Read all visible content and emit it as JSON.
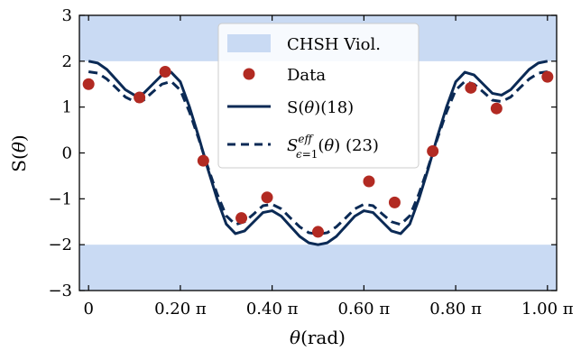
{
  "chart_data": {
    "type": "line",
    "xlabel": "θ(rad)",
    "ylabel": "S(θ)",
    "xlim": [
      -0.02,
      1.02
    ],
    "ylim": [
      -3,
      3
    ],
    "x_unit": "π",
    "x_ticks": [
      {
        "value": 0,
        "label": "0"
      },
      {
        "value": 0.2,
        "label": "0.20 π"
      },
      {
        "value": 0.4,
        "label": "0.40 π"
      },
      {
        "value": 0.6,
        "label": "0.60 π"
      },
      {
        "value": 0.8,
        "label": "0.80 π"
      },
      {
        "value": 1.0,
        "label": "1.00 π"
      }
    ],
    "y_ticks": [
      {
        "value": 3,
        "label": "3"
      },
      {
        "value": 2,
        "label": "2"
      },
      {
        "value": 1,
        "label": "1"
      },
      {
        "value": 0,
        "label": "0"
      },
      {
        "value": -1,
        "label": "−1"
      },
      {
        "value": -2,
        "label": "−2"
      },
      {
        "value": -3,
        "label": "−3"
      }
    ],
    "grid": false,
    "legend_position": "top-center",
    "bands": [
      {
        "name": "CHSH Viol.",
        "y_from": 2,
        "y_to": 3,
        "color": "#c9daf3"
      },
      {
        "name": "CHSH Viol.",
        "y_from": -3,
        "y_to": -2,
        "color": "#c9daf3"
      }
    ],
    "scatter": {
      "name": "Data",
      "color": "#b22a22",
      "x": [
        0,
        0.111,
        0.167,
        0.25,
        0.333,
        0.389,
        0.5,
        0.611,
        0.667,
        0.75,
        0.833,
        0.889,
        1.0
      ],
      "y": [
        1.5,
        1.21,
        1.77,
        -0.17,
        -1.42,
        -0.97,
        -1.72,
        -0.62,
        -1.08,
        0.04,
        1.42,
        0.97,
        1.66
      ]
    },
    "series": [
      {
        "name": "S(θ)(18)",
        "style": "solid",
        "color": "#0b2a55",
        "x": [
          0,
          0.02,
          0.04,
          0.06,
          0.08,
          0.1,
          0.12,
          0.14,
          0.16,
          0.18,
          0.2,
          0.22,
          0.24,
          0.26,
          0.28,
          0.3,
          0.32,
          0.34,
          0.36,
          0.38,
          0.4,
          0.42,
          0.44,
          0.46,
          0.48,
          0.5,
          0.52,
          0.54,
          0.56,
          0.58,
          0.6,
          0.62,
          0.64,
          0.66,
          0.68,
          0.7,
          0.72,
          0.74,
          0.76,
          0.78,
          0.8,
          0.82,
          0.84,
          0.86,
          0.88,
          0.9,
          0.92,
          0.94,
          0.96,
          0.98,
          1.0
        ],
        "y": [
          2.0,
          1.96,
          1.82,
          1.6,
          1.38,
          1.26,
          1.3,
          1.5,
          1.7,
          1.76,
          1.55,
          1.0,
          0.35,
          -0.35,
          -1.0,
          -1.55,
          -1.76,
          -1.7,
          -1.5,
          -1.3,
          -1.26,
          -1.38,
          -1.6,
          -1.82,
          -1.96,
          -2.0,
          -1.96,
          -1.82,
          -1.6,
          -1.38,
          -1.26,
          -1.3,
          -1.5,
          -1.7,
          -1.76,
          -1.55,
          -1.0,
          -0.35,
          0.35,
          1.0,
          1.55,
          1.76,
          1.7,
          1.5,
          1.3,
          1.26,
          1.38,
          1.6,
          1.82,
          1.96,
          2.0
        ]
      },
      {
        "name": "S^{eff}_{ϵ=1}(θ) (23)",
        "style": "dashed",
        "color": "#0b2a55",
        "x": [
          0,
          0.02,
          0.04,
          0.06,
          0.08,
          0.1,
          0.12,
          0.14,
          0.16,
          0.18,
          0.2,
          0.22,
          0.24,
          0.26,
          0.28,
          0.3,
          0.32,
          0.34,
          0.36,
          0.38,
          0.4,
          0.42,
          0.44,
          0.46,
          0.48,
          0.5,
          0.52,
          0.54,
          0.56,
          0.58,
          0.6,
          0.62,
          0.64,
          0.66,
          0.68,
          0.7,
          0.72,
          0.74,
          0.76,
          0.78,
          0.8,
          0.82,
          0.84,
          0.86,
          0.88,
          0.9,
          0.92,
          0.94,
          0.96,
          0.98,
          1.0
        ],
        "y": [
          1.77,
          1.74,
          1.61,
          1.42,
          1.22,
          1.12,
          1.15,
          1.33,
          1.5,
          1.56,
          1.37,
          0.89,
          0.31,
          -0.31,
          -0.89,
          -1.37,
          -1.56,
          -1.5,
          -1.33,
          -1.15,
          -1.12,
          -1.22,
          -1.42,
          -1.61,
          -1.74,
          -1.77,
          -1.74,
          -1.61,
          -1.42,
          -1.22,
          -1.12,
          -1.15,
          -1.33,
          -1.5,
          -1.56,
          -1.37,
          -0.89,
          -0.31,
          0.31,
          0.89,
          1.37,
          1.56,
          1.5,
          1.33,
          1.15,
          1.12,
          1.22,
          1.42,
          1.61,
          1.74,
          1.77
        ]
      }
    ]
  }
}
